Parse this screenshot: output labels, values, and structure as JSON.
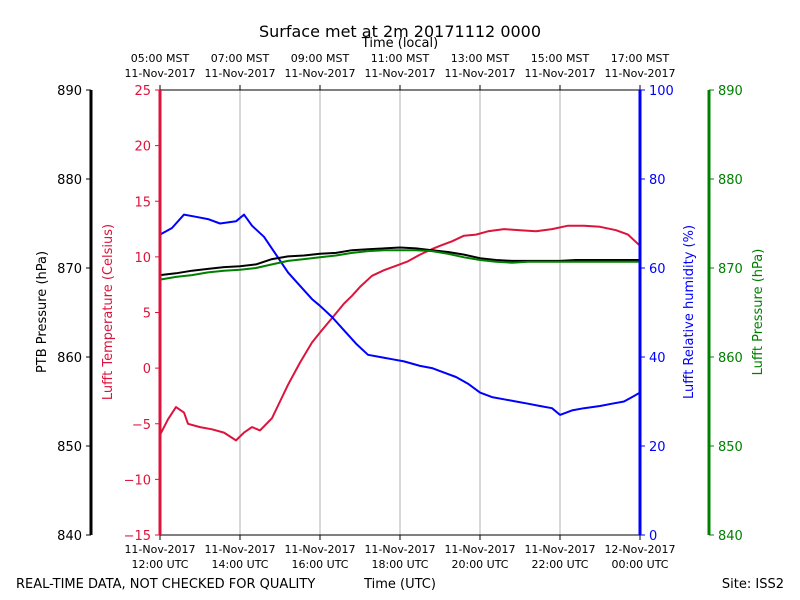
{
  "chart_data": {
    "type": "line",
    "title": "Surface met at 2m 20171112 0000",
    "top_axis_title": "Time (local)",
    "bottom_axis_title": "Time (UTC)",
    "footer_left": "REAL-TIME DATA, NOT CHECKED FOR QUALITY",
    "footer_right": "Site: ISS2",
    "x_range_hours_utc": [
      12,
      24
    ],
    "x_bottom_ticks": [
      {
        "t": 12,
        "line1": "11-Nov-2017",
        "line2": "12:00 UTC"
      },
      {
        "t": 14,
        "line1": "11-Nov-2017",
        "line2": "14:00 UTC"
      },
      {
        "t": 16,
        "line1": "11-Nov-2017",
        "line2": "16:00 UTC"
      },
      {
        "t": 18,
        "line1": "11-Nov-2017",
        "line2": "18:00 UTC"
      },
      {
        "t": 20,
        "line1": "11-Nov-2017",
        "line2": "20:00 UTC"
      },
      {
        "t": 22,
        "line1": "11-Nov-2017",
        "line2": "22:00 UTC"
      },
      {
        "t": 24,
        "line1": "12-Nov-2017",
        "line2": "00:00 UTC"
      }
    ],
    "x_top_ticks": [
      {
        "t": 12,
        "line1": "05:00 MST",
        "line2": "11-Nov-2017"
      },
      {
        "t": 14,
        "line1": "07:00 MST",
        "line2": "11-Nov-2017"
      },
      {
        "t": 16,
        "line1": "09:00 MST",
        "line2": "11-Nov-2017"
      },
      {
        "t": 18,
        "line1": "11:00 MST",
        "line2": "11-Nov-2017"
      },
      {
        "t": 20,
        "line1": "13:00 MST",
        "line2": "11-Nov-2017"
      },
      {
        "t": 22,
        "line1": "15:00 MST",
        "line2": "11-Nov-2017"
      },
      {
        "t": 24,
        "line1": "17:00 MST",
        "line2": "11-Nov-2017"
      }
    ],
    "axes": {
      "ptb_pressure": {
        "label": "PTB Pressure (hPa)",
        "ylim": [
          840,
          890
        ],
        "ticks": [
          "840",
          "850",
          "860",
          "870",
          "880",
          "890"
        ],
        "color": "#000000"
      },
      "temperature": {
        "label": "Lufft Temperature (Celsius)",
        "ylim": [
          -15,
          25
        ],
        "ticks": [
          "−15",
          "−10",
          "−5",
          "0",
          "5",
          "10",
          "15",
          "20",
          "25"
        ],
        "color": "#dc143c"
      },
      "humidity": {
        "label": "Lufft Relative humidity (%)",
        "ylim": [
          0,
          100
        ],
        "ticks": [
          "0",
          "20",
          "40",
          "60",
          "80",
          "100"
        ],
        "color": "#0000ff"
      },
      "lufft_pressure": {
        "label": "Lufft Pressure (hPa)",
        "ylim": [
          840,
          890
        ],
        "ticks": [
          "840",
          "850",
          "860",
          "870",
          "880",
          "890"
        ],
        "color": "#008000"
      }
    },
    "series": [
      {
        "name": "Lufft Temperature",
        "axis": "temperature",
        "color": "#dc143c",
        "points": [
          [
            12.0,
            -6.0
          ],
          [
            12.2,
            -4.6
          ],
          [
            12.4,
            -3.5
          ],
          [
            12.6,
            -4.0
          ],
          [
            12.7,
            -5.0
          ],
          [
            13.0,
            -5.3
          ],
          [
            13.3,
            -5.5
          ],
          [
            13.6,
            -5.8
          ],
          [
            13.9,
            -6.5
          ],
          [
            14.1,
            -5.8
          ],
          [
            14.3,
            -5.3
          ],
          [
            14.5,
            -5.6
          ],
          [
            14.8,
            -4.5
          ],
          [
            15.0,
            -3.0
          ],
          [
            15.2,
            -1.5
          ],
          [
            15.5,
            0.5
          ],
          [
            15.8,
            2.3
          ],
          [
            16.0,
            3.2
          ],
          [
            16.3,
            4.5
          ],
          [
            16.6,
            5.8
          ],
          [
            16.8,
            6.5
          ],
          [
            17.0,
            7.3
          ],
          [
            17.3,
            8.3
          ],
          [
            17.6,
            8.8
          ],
          [
            17.9,
            9.2
          ],
          [
            18.2,
            9.6
          ],
          [
            18.5,
            10.2
          ],
          [
            18.8,
            10.7
          ],
          [
            19.0,
            11.0
          ],
          [
            19.3,
            11.4
          ],
          [
            19.6,
            11.9
          ],
          [
            19.9,
            12.0
          ],
          [
            20.2,
            12.3
          ],
          [
            20.6,
            12.5
          ],
          [
            21.0,
            12.4
          ],
          [
            21.4,
            12.3
          ],
          [
            21.8,
            12.5
          ],
          [
            22.2,
            12.8
          ],
          [
            22.6,
            12.8
          ],
          [
            23.0,
            12.7
          ],
          [
            23.4,
            12.4
          ],
          [
            23.7,
            12.0
          ],
          [
            24.0,
            11.0
          ]
        ]
      },
      {
        "name": "Lufft Relative humidity",
        "axis": "humidity",
        "color": "#0000ff",
        "points": [
          [
            12.0,
            67.5
          ],
          [
            12.3,
            69.0
          ],
          [
            12.6,
            72.0
          ],
          [
            12.9,
            71.5
          ],
          [
            13.2,
            71.0
          ],
          [
            13.5,
            70.0
          ],
          [
            13.9,
            70.5
          ],
          [
            14.1,
            72.0
          ],
          [
            14.3,
            69.5
          ],
          [
            14.6,
            67.0
          ],
          [
            14.9,
            63.0
          ],
          [
            15.2,
            59.0
          ],
          [
            15.5,
            56.0
          ],
          [
            15.8,
            53.0
          ],
          [
            16.0,
            51.5
          ],
          [
            16.3,
            49.0
          ],
          [
            16.6,
            46.0
          ],
          [
            16.9,
            43.0
          ],
          [
            17.2,
            40.5
          ],
          [
            17.5,
            40.0
          ],
          [
            17.8,
            39.5
          ],
          [
            18.1,
            39.0
          ],
          [
            18.5,
            38.0
          ],
          [
            18.8,
            37.5
          ],
          [
            19.1,
            36.5
          ],
          [
            19.4,
            35.5
          ],
          [
            19.7,
            34.0
          ],
          [
            20.0,
            32.0
          ],
          [
            20.3,
            31.0
          ],
          [
            20.6,
            30.5
          ],
          [
            20.9,
            30.0
          ],
          [
            21.2,
            29.5
          ],
          [
            21.5,
            29.0
          ],
          [
            21.8,
            28.5
          ],
          [
            22.0,
            27.0
          ],
          [
            22.3,
            28.0
          ],
          [
            22.6,
            28.5
          ],
          [
            23.0,
            29.0
          ],
          [
            23.3,
            29.5
          ],
          [
            23.6,
            30.0
          ],
          [
            23.8,
            31.0
          ],
          [
            24.0,
            32.0
          ]
        ]
      },
      {
        "name": "PTB Pressure",
        "axis": "ptb_pressure",
        "color": "#000000",
        "points": [
          [
            12.0,
            869.2
          ],
          [
            12.4,
            869.4
          ],
          [
            12.8,
            869.7
          ],
          [
            13.2,
            869.9
          ],
          [
            13.6,
            870.1
          ],
          [
            14.0,
            870.2
          ],
          [
            14.4,
            870.4
          ],
          [
            14.8,
            871.0
          ],
          [
            15.2,
            871.3
          ],
          [
            15.6,
            871.4
          ],
          [
            16.0,
            871.6
          ],
          [
            16.4,
            871.7
          ],
          [
            16.8,
            872.0
          ],
          [
            17.2,
            872.1
          ],
          [
            17.6,
            872.2
          ],
          [
            18.0,
            872.3
          ],
          [
            18.4,
            872.2
          ],
          [
            18.8,
            872.0
          ],
          [
            19.2,
            871.8
          ],
          [
            19.6,
            871.5
          ],
          [
            20.0,
            871.1
          ],
          [
            20.4,
            870.9
          ],
          [
            20.8,
            870.8
          ],
          [
            21.2,
            870.8
          ],
          [
            21.6,
            870.8
          ],
          [
            22.0,
            870.8
          ],
          [
            22.4,
            870.9
          ],
          [
            22.8,
            870.9
          ],
          [
            23.2,
            870.9
          ],
          [
            23.6,
            870.9
          ],
          [
            24.0,
            870.9
          ]
        ]
      },
      {
        "name": "Lufft Pressure",
        "axis": "lufft_pressure",
        "color": "#008000",
        "points": [
          [
            12.0,
            868.7
          ],
          [
            12.4,
            869.0
          ],
          [
            12.8,
            869.2
          ],
          [
            13.2,
            869.5
          ],
          [
            13.6,
            869.7
          ],
          [
            14.0,
            869.8
          ],
          [
            14.4,
            870.0
          ],
          [
            14.8,
            870.4
          ],
          [
            15.2,
            870.8
          ],
          [
            15.6,
            871.0
          ],
          [
            16.0,
            871.2
          ],
          [
            16.4,
            871.4
          ],
          [
            16.8,
            871.7
          ],
          [
            17.2,
            871.9
          ],
          [
            17.6,
            872.0
          ],
          [
            18.0,
            872.0
          ],
          [
            18.4,
            872.0
          ],
          [
            18.8,
            871.9
          ],
          [
            19.2,
            871.6
          ],
          [
            19.6,
            871.2
          ],
          [
            20.0,
            870.9
          ],
          [
            20.4,
            870.7
          ],
          [
            20.8,
            870.6
          ],
          [
            21.2,
            870.7
          ],
          [
            21.6,
            870.7
          ],
          [
            22.0,
            870.7
          ],
          [
            22.4,
            870.7
          ],
          [
            22.8,
            870.7
          ],
          [
            23.2,
            870.7
          ],
          [
            23.6,
            870.7
          ],
          [
            24.0,
            870.7
          ]
        ]
      }
    ]
  }
}
